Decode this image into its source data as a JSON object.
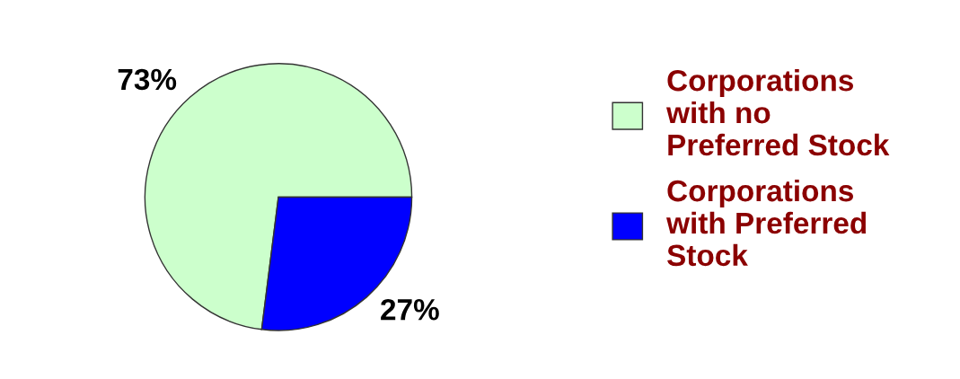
{
  "chart_data": {
    "type": "pie",
    "categories": [
      "Corporations with no Preferred Stock",
      "Corporations with Preferred Stock"
    ],
    "values": [
      73,
      27
    ],
    "colors": [
      "#ccffcc",
      "#0000ff"
    ],
    "value_labels": [
      "73%",
      "27%"
    ],
    "legend": "right"
  }
}
